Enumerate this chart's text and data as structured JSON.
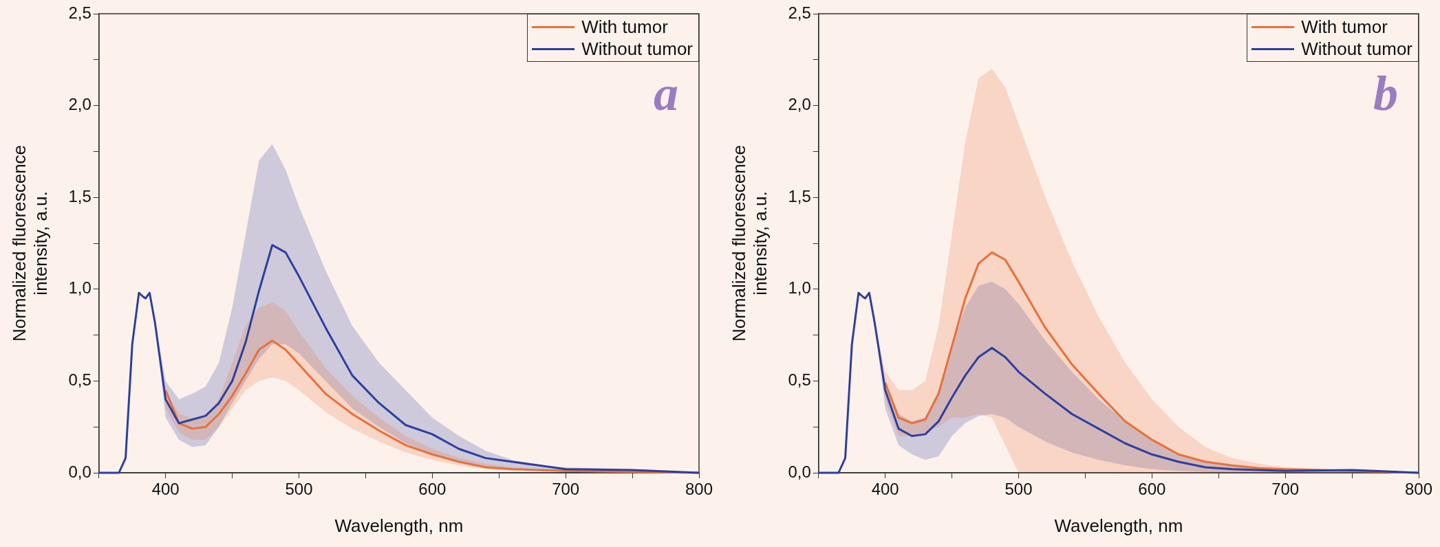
{
  "chart_data": [
    {
      "type": "line",
      "xlabel": "Wavelength, nm",
      "ylabel": "Normalized fluorescence intensity, a.u.",
      "annotations": [
        "a"
      ],
      "legend": "top right",
      "grid": false,
      "line_style": "solid",
      "marker": "none",
      "x": [
        350,
        365,
        370,
        375,
        380,
        383,
        385,
        388,
        392,
        400,
        410,
        420,
        430,
        440,
        450,
        460,
        470,
        480,
        490,
        500,
        520,
        540,
        560,
        580,
        600,
        620,
        640,
        660,
        680,
        700,
        750,
        800
      ],
      "xlim": [
        350,
        800
      ],
      "xticks": [
        {
          "value": 350,
          "label": null
        },
        400,
        {
          "value": 450,
          "label": null
        },
        500,
        {
          "value": 550,
          "label": null
        },
        600,
        {
          "value": 650,
          "label": null
        },
        700,
        {
          "value": 750,
          "label": null
        },
        800
      ],
      "ylim": [
        0,
        2.5
      ],
      "yticks": [
        {
          "value": 0,
          "label": "0,0"
        },
        {
          "value": 0.25,
          "label": null
        },
        {
          "value": 0.5,
          "label": "0,5"
        },
        {
          "value": 0.75,
          "label": null
        },
        {
          "value": 1,
          "label": "1,0"
        },
        {
          "value": 1.25,
          "label": null
        },
        {
          "value": 1.5,
          "label": "1,5"
        },
        {
          "value": 1.75,
          "label": null
        },
        {
          "value": 2,
          "label": "2,0"
        },
        {
          "value": 2.25,
          "label": null
        },
        {
          "value": 2.5,
          "label": "2,5"
        }
      ],
      "series": [
        {
          "name": "With tumor",
          "color": "#e8703a",
          "values": [
            null,
            null,
            null,
            null,
            null,
            null,
            null,
            null,
            null,
            0.45,
            0.27,
            0.24,
            0.25,
            0.32,
            0.42,
            0.54,
            0.67,
            0.72,
            0.67,
            0.59,
            0.43,
            0.32,
            0.23,
            0.15,
            0.1,
            0.06,
            0.03,
            0.02,
            0.015,
            0.01,
            0.005,
            0
          ],
          "lower": [
            0,
            0,
            0.08,
            0.7,
            0.98,
            0.96,
            0.95,
            0.98,
            0.82,
            0.35,
            0.22,
            0.18,
            0.18,
            0.25,
            0.35,
            0.45,
            0.5,
            0.52,
            0.5,
            0.45,
            0.33,
            0.24,
            0.17,
            0.11,
            0.07,
            0.04,
            0.02,
            0.01,
            0.01,
            0.005,
            0,
            0
          ],
          "upper": [
            0,
            0,
            0.08,
            0.7,
            0.98,
            0.96,
            0.95,
            0.98,
            0.82,
            0.45,
            0.32,
            0.3,
            0.3,
            0.4,
            0.6,
            0.8,
            0.9,
            0.93,
            0.88,
            0.77,
            0.57,
            0.42,
            0.3,
            0.2,
            0.13,
            0.08,
            0.05,
            0.03,
            0.02,
            0.015,
            0.01,
            0
          ]
        },
        {
          "name": "Without tumor",
          "color": "#2b3f9e",
          "values": [
            0,
            0,
            0.08,
            0.7,
            0.98,
            0.96,
            0.95,
            0.98,
            0.82,
            0.4,
            0.27,
            0.29,
            0.31,
            0.38,
            0.5,
            0.71,
            0.99,
            1.24,
            1.2,
            1.07,
            0.79,
            0.53,
            0.38,
            0.26,
            0.21,
            0.13,
            0.08,
            0.06,
            0.04,
            0.02,
            0.015,
            0
          ],
          "lower": [
            0,
            0,
            0.08,
            0.7,
            0.98,
            0.96,
            0.95,
            0.98,
            0.82,
            0.3,
            0.18,
            0.14,
            0.15,
            0.25,
            0.38,
            0.5,
            0.62,
            0.7,
            0.7,
            0.65,
            0.5,
            0.35,
            0.25,
            0.16,
            0.1,
            0.06,
            0.03,
            0.02,
            0.01,
            0.005,
            0,
            0
          ],
          "upper": [
            0,
            0,
            0.08,
            0.7,
            0.98,
            0.96,
            0.95,
            0.98,
            0.82,
            0.5,
            0.4,
            0.43,
            0.47,
            0.6,
            0.9,
            1.3,
            1.7,
            1.79,
            1.65,
            1.45,
            1.1,
            0.8,
            0.6,
            0.45,
            0.3,
            0.2,
            0.12,
            0.07,
            0.04,
            0.03,
            0.02,
            0
          ]
        }
      ]
    },
    {
      "type": "line",
      "xlabel": "Wavelength, nm",
      "ylabel": "Normalized fluorescence intensity, a.u.",
      "annotations": [
        "b"
      ],
      "legend": "top right",
      "grid": false,
      "line_style": "solid",
      "marker": "none",
      "x": [
        350,
        365,
        370,
        375,
        380,
        383,
        385,
        388,
        392,
        400,
        410,
        420,
        430,
        440,
        450,
        460,
        470,
        480,
        490,
        500,
        520,
        540,
        560,
        580,
        600,
        620,
        640,
        660,
        680,
        700,
        750,
        800
      ],
      "xlim": [
        350,
        800
      ],
      "xticks": [
        {
          "value": 350,
          "label": null
        },
        400,
        {
          "value": 450,
          "label": null
        },
        500,
        {
          "value": 550,
          "label": null
        },
        600,
        {
          "value": 650,
          "label": null
        },
        700,
        {
          "value": 750,
          "label": null
        },
        800
      ],
      "ylim": [
        0,
        2.5
      ],
      "yticks": [
        {
          "value": 0,
          "label": "0,0"
        },
        {
          "value": 0.25,
          "label": null
        },
        {
          "value": 0.5,
          "label": "0,5"
        },
        {
          "value": 0.75,
          "label": null
        },
        {
          "value": 1,
          "label": "1,0"
        },
        {
          "value": 1.25,
          "label": null
        },
        {
          "value": 1.5,
          "label": "1,5"
        },
        {
          "value": 1.75,
          "label": null
        },
        {
          "value": 2,
          "label": "2,0"
        },
        {
          "value": 2.25,
          "label": null
        },
        {
          "value": 2.5,
          "label": "2,5"
        }
      ],
      "series": [
        {
          "name": "With tumor",
          "color": "#e8703a",
          "values": [
            null,
            null,
            null,
            null,
            null,
            null,
            null,
            null,
            null,
            0.49,
            0.3,
            0.27,
            0.29,
            0.43,
            0.69,
            0.95,
            1.14,
            1.2,
            1.16,
            1.04,
            0.79,
            0.59,
            0.43,
            0.28,
            0.18,
            0.1,
            0.06,
            0.04,
            0.025,
            0.02,
            0.01,
            0
          ],
          "lower": [
            0,
            0,
            0.08,
            0.7,
            0.98,
            0.96,
            0.95,
            0.98,
            0.82,
            0.4,
            0.2,
            0.2,
            0.22,
            0.25,
            0.3,
            0.3,
            0.32,
            0.3,
            0.15,
            0,
            0,
            0,
            0,
            0,
            0,
            0,
            0,
            0,
            0,
            0,
            0,
            0
          ],
          "upper": [
            0,
            0,
            0.08,
            0.7,
            0.98,
            0.96,
            0.95,
            0.98,
            0.82,
            0.55,
            0.45,
            0.45,
            0.5,
            0.8,
            1.3,
            1.8,
            2.15,
            2.2,
            2.1,
            1.9,
            1.5,
            1.15,
            0.85,
            0.6,
            0.4,
            0.25,
            0.14,
            0.08,
            0.05,
            0.03,
            0.015,
            0
          ]
        },
        {
          "name": "Without tumor",
          "color": "#2b3f9e",
          "values": [
            0,
            0,
            0.08,
            0.7,
            0.98,
            0.96,
            0.95,
            0.98,
            0.82,
            0.45,
            0.24,
            0.2,
            0.21,
            0.28,
            0.41,
            0.53,
            0.63,
            0.68,
            0.63,
            0.55,
            0.43,
            0.32,
            0.24,
            0.16,
            0.1,
            0.06,
            0.03,
            0.02,
            0.015,
            0.01,
            0.015,
            0
          ],
          "lower": [
            0,
            0,
            0.08,
            0.7,
            0.98,
            0.96,
            0.95,
            0.98,
            0.82,
            0.35,
            0.15,
            0.1,
            0.07,
            0.09,
            0.2,
            0.27,
            0.31,
            0.32,
            0.3,
            0.25,
            0.17,
            0.11,
            0.07,
            0.04,
            0.02,
            0.01,
            0.005,
            0,
            0,
            0,
            0,
            0
          ],
          "upper": [
            0,
            0,
            0.08,
            0.7,
            0.98,
            0.96,
            0.95,
            0.98,
            0.82,
            0.5,
            0.32,
            0.28,
            0.3,
            0.45,
            0.7,
            0.9,
            1.02,
            1.04,
            1.0,
            0.92,
            0.72,
            0.55,
            0.4,
            0.28,
            0.18,
            0.1,
            0.06,
            0.04,
            0.02,
            0.015,
            0.015,
            0
          ]
        }
      ]
    }
  ]
}
